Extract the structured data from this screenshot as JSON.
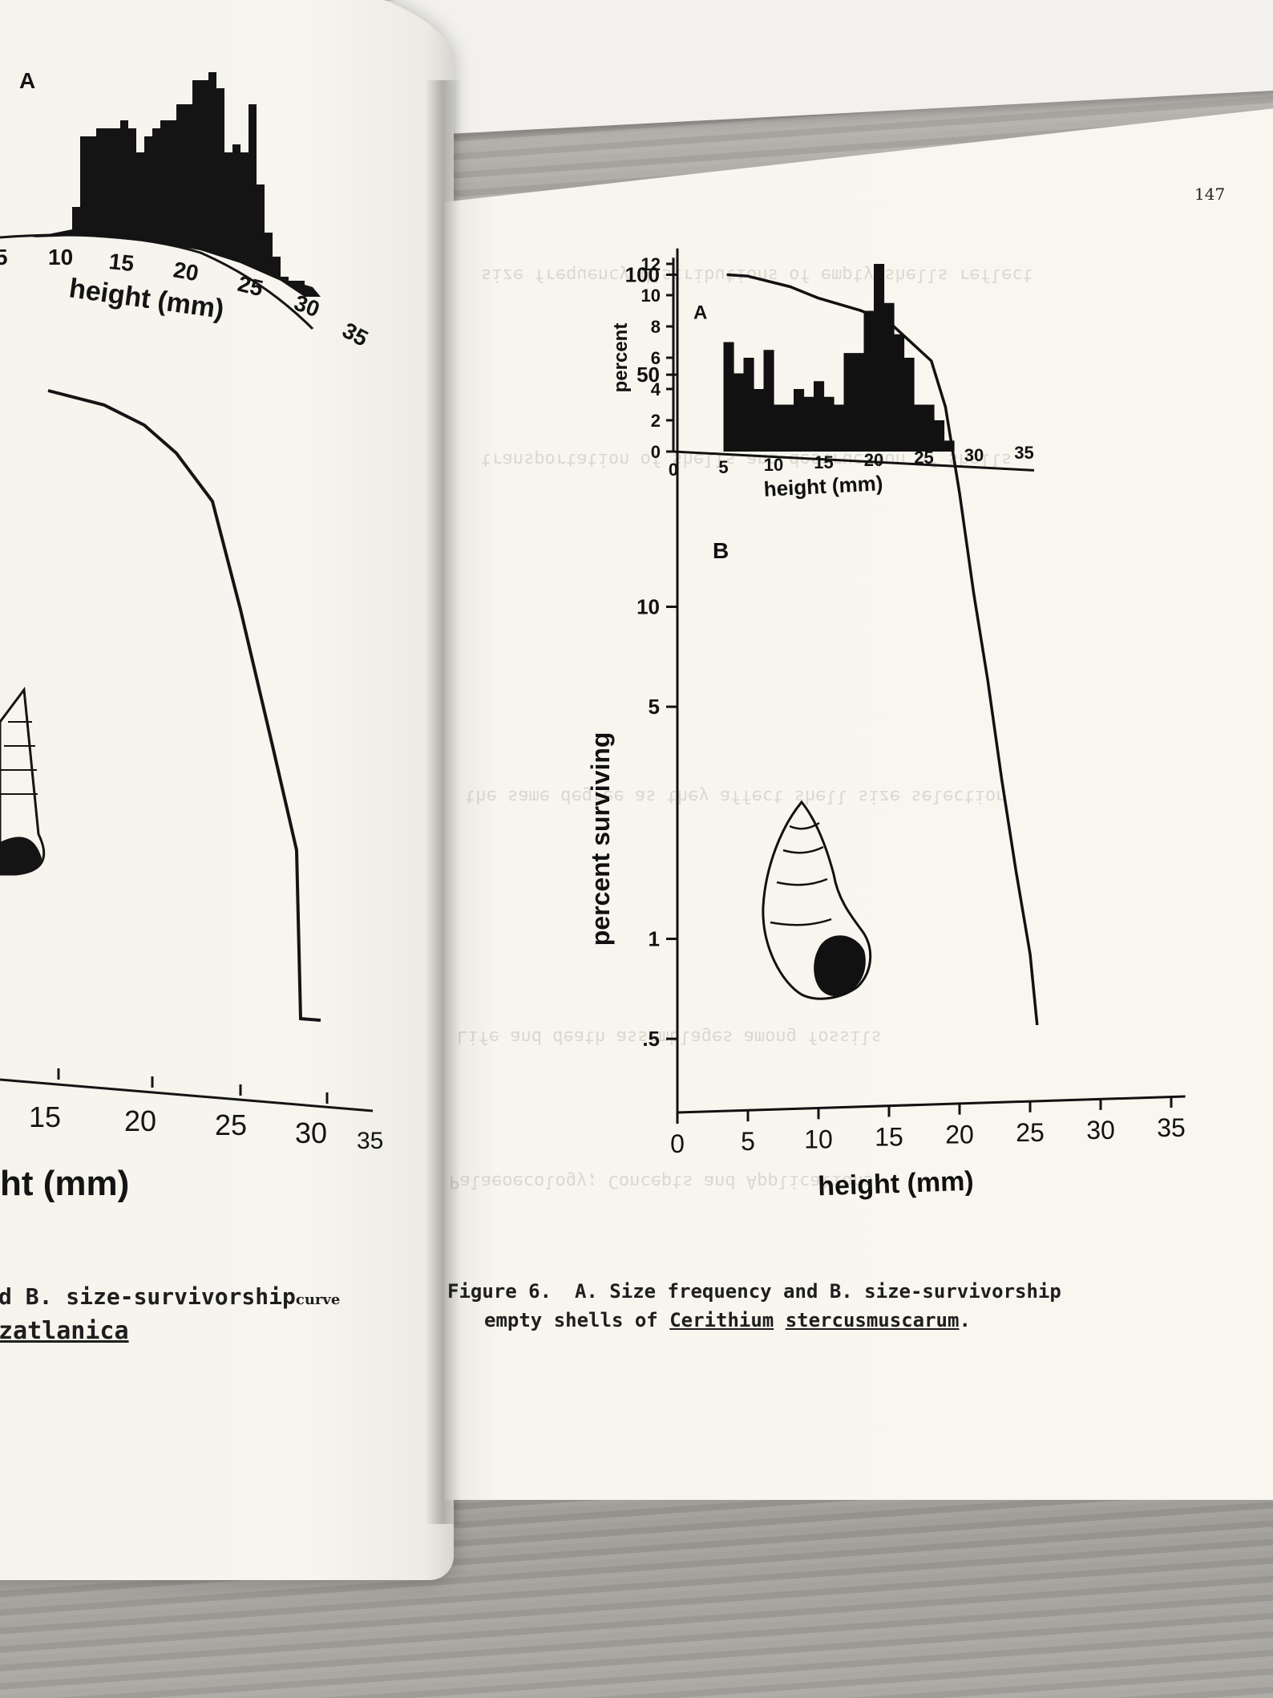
{
  "page_number": "147",
  "left_page": {
    "panel_a_label": "A",
    "top_ticks": [
      "5",
      "10",
      "15",
      "20",
      "25",
      "30",
      "35"
    ],
    "top_axis_label": "height (mm)",
    "bottom_ticks": [
      "15",
      "20",
      "25",
      "30",
      "35"
    ],
    "bottom_axis_label": "ht (mm)",
    "caption_line1": "d  B. size-survivorship",
    "caption_line1_small": "curve",
    "caption_line2": "zatlanica"
  },
  "right_page": {
    "figure_label": "Figure 6.",
    "caption_line1": "A. Size frequency and B. size-survivorship",
    "caption_line2_prefix": "empty shells of",
    "genus": "Cerithium",
    "species": "stercusmuscarum",
    "caption_line2_suffix": "."
  },
  "chart_data": [
    {
      "type": "bar",
      "panel_label": "A",
      "xlabel": "height (mm)",
      "ylabel": "percent",
      "xlim": [
        0,
        35
      ],
      "ylim": [
        0,
        12
      ],
      "x_ticks": [
        "0",
        "5",
        "10",
        "15",
        "20",
        "25",
        "30",
        "35"
      ],
      "y_ticks": [
        "0",
        "2",
        "4",
        "6",
        "8",
        "10",
        "12"
      ],
      "bin_width_mm": 1,
      "bins_start_mm": [
        5,
        6,
        7,
        8,
        9,
        10,
        11,
        12,
        13,
        14,
        15,
        16,
        17,
        18,
        19,
        20,
        21,
        22,
        23,
        24,
        25,
        26,
        27
      ],
      "values": [
        7,
        5,
        6,
        4,
        6.5,
        3,
        3,
        4,
        3.5,
        4.5,
        3.5,
        3,
        6.3,
        6.3,
        9,
        12,
        9.5,
        7.5,
        6,
        3,
        3,
        2,
        0.7
      ]
    },
    {
      "type": "line",
      "panel_label": "B",
      "xlabel": "height (mm)",
      "ylabel": "percent surviving",
      "yscale": "log",
      "xlim": [
        0,
        35
      ],
      "x_ticks": [
        "0",
        "5",
        "10",
        "15",
        "20",
        "25",
        "30",
        "35"
      ],
      "y_ticks": [
        "100",
        "50",
        "10",
        "5",
        "1",
        ".5"
      ],
      "series": [
        {
          "x": [
            3.5,
            5,
            8,
            10,
            13,
            15,
            18,
            19,
            20,
            21,
            22,
            23,
            24,
            25,
            25.5
          ],
          "y": [
            100,
            99,
            92,
            85,
            78,
            72,
            55,
            40,
            22,
            11,
            6,
            3,
            1.6,
            0.9,
            0.55
          ]
        }
      ]
    }
  ]
}
